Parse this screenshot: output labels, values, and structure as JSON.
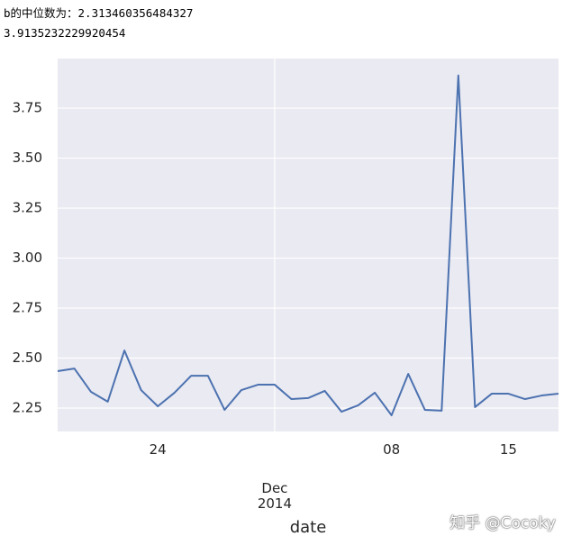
{
  "output_lines": [
    "b的中位数为：2.313460356484327",
    "3.9135232229920454"
  ],
  "watermark": "知乎 @Cocoky",
  "chart_data": {
    "type": "line",
    "xlabel": "date",
    "categories": [
      null,
      null,
      null,
      null,
      null,
      null,
      "24",
      null,
      null,
      null,
      null,
      null,
      null,
      "Dec\n2014",
      null,
      null,
      null,
      null,
      null,
      null,
      "08",
      null,
      null,
      null,
      null,
      null,
      null,
      "15",
      null,
      null,
      null
    ],
    "series": [
      {
        "name": "b",
        "color": "#4c72b0",
        "values": [
          2.435,
          2.448,
          2.331,
          2.282,
          2.538,
          2.34,
          2.259,
          2.327,
          2.412,
          2.412,
          2.241,
          2.34,
          2.367,
          2.367,
          2.295,
          2.3,
          2.336,
          2.232,
          2.264,
          2.327,
          2.214,
          2.421,
          2.241,
          2.237,
          3.9135232229920454,
          2.255,
          2.322,
          2.322,
          2.295,
          2.313,
          2.322
        ]
      }
    ],
    "ylim": [
      2.133,
      3.998
    ],
    "yticks": [
      2.25,
      {
        "value": 2.5,
        "label": "2.50"
      },
      2.75,
      {
        "value": 3.0,
        "label": "3.00"
      },
      3.25,
      {
        "value": 3.5,
        "label": "3.50"
      },
      3.75
    ],
    "grid": true,
    "background": "#eaeaf2"
  }
}
